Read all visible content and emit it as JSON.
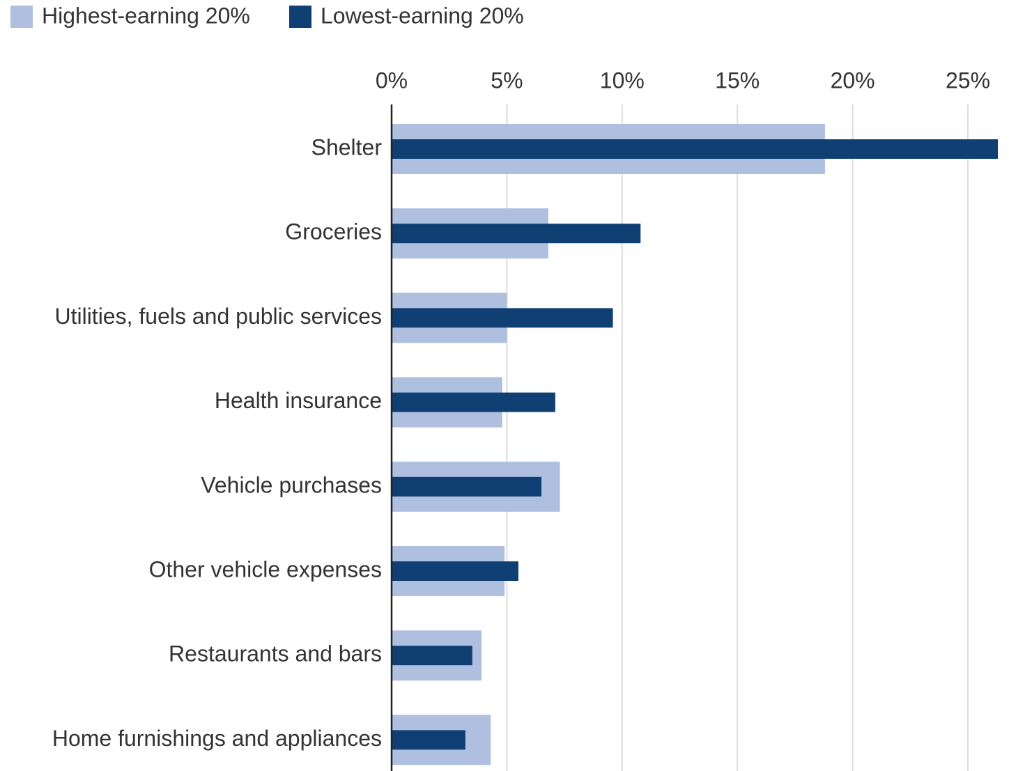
{
  "chart_data": {
    "type": "bar",
    "orientation": "horizontal",
    "categories": [
      "Shelter",
      "Groceries",
      "Utilities, fuels and public services",
      "Health insurance",
      "Vehicle purchases",
      "Other vehicle expenses",
      "Restaurants and bars",
      "Home furnishings and appliances"
    ],
    "series": [
      {
        "name": "Highest-earning 20%",
        "color": "#aebfe0",
        "values": [
          18.8,
          6.8,
          5.0,
          4.8,
          7.3,
          4.9,
          3.9,
          4.3
        ]
      },
      {
        "name": "Lowest-earning 20%",
        "color": "#0f3f73",
        "values": [
          26.3,
          10.8,
          9.6,
          7.1,
          6.5,
          5.5,
          3.5,
          3.2
        ]
      }
    ],
    "xlim": [
      0,
      26.3
    ],
    "xticks": [
      {
        "value": 0,
        "label": "0%"
      },
      {
        "value": 5,
        "label": "5%"
      },
      {
        "value": 10,
        "label": "10%"
      },
      {
        "value": 15,
        "label": "15%"
      },
      {
        "value": 20,
        "label": "20%"
      },
      {
        "value": 25,
        "label": "25%"
      }
    ],
    "grid": true,
    "legend": "top-left"
  }
}
